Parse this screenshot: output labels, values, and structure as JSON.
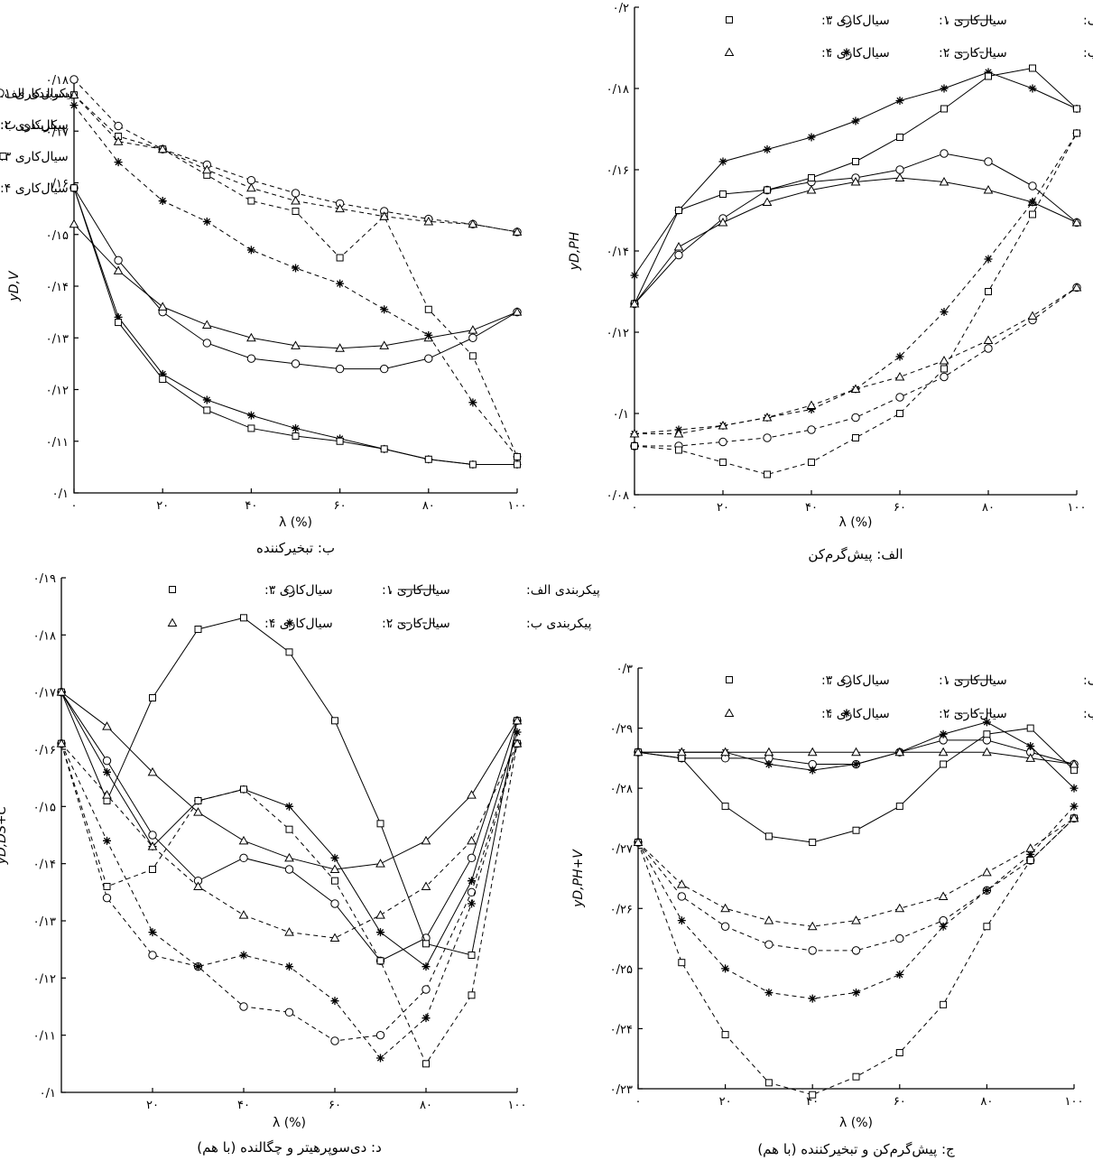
{
  "chart_data": [
    {
      "id": "ph",
      "type": "line",
      "title": "الف: پیش‌گرم‌کن",
      "xlabel": "λ (%)",
      "ylabel": "yD,PH",
      "xlim": [
        0,
        100
      ],
      "ylim": [
        0.08,
        0.2
      ],
      "x_ticks": [
        "۰",
        "۲۰",
        "۴۰",
        "۶۰",
        "۸۰",
        "۱۰۰"
      ],
      "y_ticks": [
        "۰/۰۸",
        "۰/۱",
        "۰/۱۲",
        "۰/۱۴",
        "۰/۱۶",
        "۰/۱۸",
        "۰/۲"
      ],
      "legend": {
        "style": "compact",
        "placement": "top-right",
        "config_a": "پیکربندی الف:",
        "config_b": "پیکربندی ب:",
        "flow1": "سیال‌کاری ۱:",
        "flow2": "سیال‌کاری ۲:",
        "flow3": "سیال‌کاری ۳:",
        "flow4": "سیال‌کاری ۴:"
      },
      "x": [
        0,
        10,
        20,
        30,
        40,
        50,
        60,
        70,
        80,
        90,
        100
      ],
      "series": [
        {
          "config": "a",
          "marker": "circle",
          "values": [
            0.127,
            0.139,
            0.148,
            0.155,
            0.157,
            0.158,
            0.16,
            0.164,
            0.162,
            0.156,
            0.147
          ]
        },
        {
          "config": "a",
          "marker": "star",
          "values": [
            0.134,
            0.15,
            0.162,
            0.165,
            0.168,
            0.172,
            0.177,
            0.18,
            0.184,
            0.18,
            0.175
          ]
        },
        {
          "config": "a",
          "marker": "square",
          "values": [
            0.127,
            0.15,
            0.154,
            0.155,
            0.158,
            0.162,
            0.168,
            0.175,
            0.183,
            0.185,
            0.175
          ]
        },
        {
          "config": "a",
          "marker": "triangle",
          "values": [
            0.127,
            0.141,
            0.147,
            0.152,
            0.155,
            0.157,
            0.158,
            0.157,
            0.155,
            0.152,
            0.147
          ]
        },
        {
          "config": "b",
          "marker": "circle",
          "values": [
            0.092,
            0.092,
            0.093,
            0.094,
            0.096,
            0.099,
            0.104,
            0.109,
            0.116,
            0.123,
            0.131
          ]
        },
        {
          "config": "b",
          "marker": "star",
          "values": [
            0.095,
            0.096,
            0.097,
            0.099,
            0.101,
            0.106,
            0.114,
            0.125,
            0.138,
            0.152,
            0.169
          ]
        },
        {
          "config": "b",
          "marker": "square",
          "values": [
            0.092,
            0.091,
            0.088,
            0.085,
            0.088,
            0.094,
            0.1,
            0.111,
            0.13,
            0.149,
            0.169
          ]
        },
        {
          "config": "b",
          "marker": "triangle",
          "values": [
            0.095,
            0.095,
            0.097,
            0.099,
            0.102,
            0.106,
            0.109,
            0.113,
            0.118,
            0.124,
            0.131
          ]
        }
      ]
    },
    {
      "id": "v",
      "type": "line",
      "title": "ب: تبخیرکننده",
      "xlabel": "λ (%)",
      "ylabel": "yD,V",
      "xlim": [
        0,
        100
      ],
      "ylim": [
        0.1,
        0.18
      ],
      "x_ticks": [
        "۰",
        "۲۰",
        "۴۰",
        "۶۰",
        "۸۰",
        "۱۰۰"
      ],
      "y_ticks": [
        "۰/۱",
        "۰/۱۱",
        "۰/۱۲",
        "۰/۱۳",
        "۰/۱۴",
        "۰/۱۵",
        "۰/۱۶",
        "۰/۱۷",
        "۰/۱۸"
      ],
      "legend": {
        "style": "stacked",
        "placement": "top-right",
        "config_a": "پیکربندی الف:",
        "config_b": "پیکربندی ب:",
        "flow1": "سیال‌کاری ۱:",
        "flow2": "سیال‌کاری ۲:",
        "flow3": "سیال‌کاری ۳:",
        "flow4": "سیال‌کاری ۴:"
      },
      "x": [
        0,
        10,
        20,
        30,
        40,
        50,
        60,
        70,
        80,
        90,
        100
      ],
      "series": [
        {
          "config": "a",
          "marker": "circle",
          "values": [
            0.159,
            0.145,
            0.135,
            0.129,
            0.126,
            0.125,
            0.124,
            0.124,
            0.126,
            0.13,
            0.135
          ]
        },
        {
          "config": "a",
          "marker": "star",
          "values": [
            0.159,
            0.134,
            0.123,
            0.118,
            0.115,
            0.1125,
            0.1105,
            0.1085,
            0.1065,
            0.1055,
            0.1055
          ]
        },
        {
          "config": "a",
          "marker": "square",
          "values": [
            0.159,
            0.133,
            0.122,
            0.116,
            0.1125,
            0.111,
            0.11,
            0.1085,
            0.1065,
            0.1055,
            0.1055
          ]
        },
        {
          "config": "a",
          "marker": "triangle",
          "values": [
            0.152,
            0.143,
            0.136,
            0.1325,
            0.13,
            0.1285,
            0.128,
            0.1285,
            0.13,
            0.1315,
            0.135
          ]
        },
        {
          "config": "b",
          "marker": "circle",
          "values": [
            0.18,
            0.171,
            0.1665,
            0.1635,
            0.1605,
            0.158,
            0.156,
            0.1545,
            0.153,
            0.152,
            0.1505
          ]
        },
        {
          "config": "b",
          "marker": "star",
          "values": [
            0.175,
            0.164,
            0.1565,
            0.1525,
            0.147,
            0.1435,
            0.1405,
            0.1355,
            0.1305,
            0.1175,
            0.107
          ]
        },
        {
          "config": "b",
          "marker": "square",
          "values": [
            0.177,
            0.169,
            0.1665,
            0.1615,
            0.1565,
            0.1545,
            0.1455,
            0.1535,
            0.1355,
            0.1265,
            0.107
          ]
        },
        {
          "config": "b",
          "marker": "triangle",
          "values": [
            0.177,
            0.168,
            0.1665,
            0.1625,
            0.159,
            0.1565,
            0.155,
            0.1535,
            0.1525,
            0.152,
            0.1505
          ]
        }
      ]
    },
    {
      "id": "phv",
      "type": "line",
      "title": "ج: پیش‌گرم‌کن و تبخیرکننده (با هم)",
      "xlabel": "λ (%)",
      "ylabel": "yD,PH+V",
      "xlim": [
        0,
        100
      ],
      "ylim": [
        0.23,
        0.3
      ],
      "x_ticks": [
        "۰",
        "۲۰",
        "۴۰",
        "۶۰",
        "۸۰",
        "۱۰۰"
      ],
      "y_ticks": [
        "۰/۲۳",
        "۰/۲۴",
        "۰/۲۵",
        "۰/۲۶",
        "۰/۲۷",
        "۰/۲۸",
        "۰/۲۹",
        "۰/۳"
      ],
      "legend": {
        "style": "compact",
        "placement": "top-right",
        "config_a": "پیکربندی الف:",
        "config_b": "پیکربندی ب:",
        "flow1": "سیال‌کاری ۱:",
        "flow2": "سیال‌کاری ۲:",
        "flow3": "سیال‌کاری ۳:",
        "flow4": "سیال‌کاری ۴:"
      },
      "x": [
        0,
        10,
        20,
        30,
        40,
        50,
        60,
        70,
        80,
        90,
        100
      ],
      "series": [
        {
          "config": "a",
          "marker": "circle",
          "values": [
            0.286,
            0.285,
            0.285,
            0.285,
            0.284,
            0.284,
            0.286,
            0.288,
            0.288,
            0.286,
            0.284
          ]
        },
        {
          "config": "a",
          "marker": "star",
          "values": [
            0.286,
            0.286,
            0.286,
            0.284,
            0.283,
            0.284,
            0.286,
            0.289,
            0.291,
            0.287,
            0.28
          ]
        },
        {
          "config": "a",
          "marker": "square",
          "values": [
            0.286,
            0.285,
            0.277,
            0.272,
            0.271,
            0.273,
            0.277,
            0.284,
            0.289,
            0.29,
            0.283
          ]
        },
        {
          "config": "a",
          "marker": "triangle",
          "values": [
            0.286,
            0.286,
            0.286,
            0.286,
            0.286,
            0.286,
            0.286,
            0.286,
            0.286,
            0.285,
            0.284
          ]
        },
        {
          "config": "b",
          "marker": "circle",
          "values": [
            0.271,
            0.262,
            0.257,
            0.254,
            0.253,
            0.253,
            0.255,
            0.258,
            0.263,
            0.268,
            0.275
          ]
        },
        {
          "config": "b",
          "marker": "star",
          "values": [
            0.271,
            0.258,
            0.25,
            0.246,
            0.245,
            0.246,
            0.249,
            0.257,
            0.263,
            0.269,
            0.277
          ]
        },
        {
          "config": "b",
          "marker": "square",
          "values": [
            0.271,
            0.251,
            0.239,
            0.231,
            0.229,
            0.232,
            0.236,
            0.244,
            0.257,
            0.268,
            0.275
          ]
        },
        {
          "config": "b",
          "marker": "triangle",
          "values": [
            0.271,
            0.264,
            0.26,
            0.258,
            0.257,
            0.258,
            0.26,
            0.262,
            0.266,
            0.27,
            0.275
          ]
        }
      ]
    },
    {
      "id": "dsc",
      "type": "line",
      "title": "د: دی‌سوپرهیتر و چگالنده (با هم)",
      "xlabel": "λ (%)",
      "ylabel": "yD,DS+C",
      "xlim": [
        0,
        100
      ],
      "ylim": [
        0.1,
        0.19
      ],
      "x_ticks": [
        "۲۰",
        "۴۰",
        "۶۰",
        "۸۰",
        "۱۰۰"
      ],
      "y_ticks": [
        "۰/۱",
        "۰/۱۱",
        "۰/۱۲",
        "۰/۱۳",
        "۰/۱۴",
        "۰/۱۵",
        "۰/۱۶",
        "۰/۱۷",
        "۰/۱۸",
        "۰/۱۹"
      ],
      "legend": {
        "style": "compact",
        "placement": "top-right",
        "config_a": "پیکربندی الف:",
        "config_b": "پیکربندی ب:",
        "flow1": "سیال‌کاری ۱:",
        "flow2": "سیال‌کاری ۲:",
        "flow3": "سیال‌کاری ۳:",
        "flow4": "سیال‌کاری ۴:"
      },
      "x": [
        0,
        10,
        20,
        30,
        40,
        50,
        60,
        70,
        80,
        90,
        100
      ],
      "series": [
        {
          "config": "a",
          "marker": "circle",
          "values": [
            0.17,
            0.158,
            0.145,
            0.137,
            0.141,
            0.139,
            0.133,
            0.123,
            0.127,
            0.141,
            0.165
          ]
        },
        {
          "config": "a",
          "marker": "star",
          "values": [
            0.17,
            0.156,
            0.143,
            0.151,
            0.153,
            0.15,
            0.141,
            0.128,
            0.122,
            0.137,
            0.163
          ]
        },
        {
          "config": "a",
          "marker": "square",
          "values": [
            0.17,
            0.151,
            0.169,
            0.181,
            0.183,
            0.177,
            0.165,
            0.147,
            0.126,
            0.124,
            0.165
          ]
        },
        {
          "config": "a",
          "marker": "triangle",
          "values": [
            0.17,
            0.164,
            0.156,
            0.149,
            0.144,
            0.141,
            0.139,
            0.14,
            0.144,
            0.152,
            0.165
          ]
        },
        {
          "config": "b",
          "marker": "circle",
          "values": [
            0.161,
            0.134,
            0.124,
            0.122,
            0.115,
            0.114,
            0.109,
            0.11,
            0.118,
            0.135,
            0.161
          ]
        },
        {
          "config": "b",
          "marker": "star",
          "values": [
            0.161,
            0.144,
            0.128,
            0.122,
            0.124,
            0.122,
            0.116,
            0.106,
            0.113,
            0.133,
            0.161
          ]
        },
        {
          "config": "b",
          "marker": "square",
          "values": [
            0.161,
            0.136,
            0.139,
            0.151,
            0.153,
            0.146,
            0.137,
            0.123,
            0.105,
            0.117,
            0.161
          ]
        },
        {
          "config": "b",
          "marker": "triangle",
          "values": [
            0.161,
            0.152,
            0.143,
            0.136,
            0.131,
            0.128,
            0.127,
            0.131,
            0.136,
            0.144,
            0.161
          ]
        }
      ]
    }
  ]
}
